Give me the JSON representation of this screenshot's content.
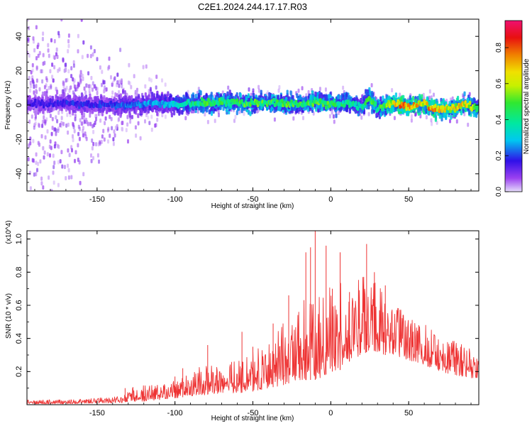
{
  "chart_data": [
    {
      "type": "heatmap",
      "title": "C2E1.2024.244.17.17.R03",
      "xlabel": "Height of straight line (km)",
      "ylabel": "Frequency (Hz)",
      "xlim": [
        -195,
        95
      ],
      "ylim": [
        -50,
        50
      ],
      "xticks": [
        -150,
        -100,
        -50,
        0,
        50
      ],
      "yticks": [
        -40,
        -20,
        0,
        20,
        40
      ],
      "colorbar": {
        "label": "Normalized spectral amplitude",
        "range": [
          0,
          0.95
        ],
        "ticks": [
          0,
          0.2,
          0.4,
          0.6,
          0.8
        ]
      },
      "trace": {
        "x": [
          -195,
          -170,
          -150,
          -130,
          -110,
          -100,
          -90,
          -80,
          -70,
          -60,
          -50,
          -40,
          -30,
          -20,
          -10,
          0,
          10,
          20,
          25,
          30,
          40,
          45,
          50,
          55,
          60,
          65,
          70,
          75,
          80,
          85,
          90,
          95
        ],
        "freq": [
          1,
          1,
          0,
          0,
          1,
          0,
          1,
          1,
          2,
          1,
          1,
          2,
          1,
          0,
          2,
          1,
          1,
          -1,
          4,
          -2,
          1,
          0,
          -1,
          0,
          1,
          -2,
          -3,
          -2,
          -2,
          1,
          -1,
          -2
        ],
        "amplitude": [
          0.15,
          0.2,
          0.2,
          0.25,
          0.3,
          0.35,
          0.45,
          0.5,
          0.5,
          0.5,
          0.55,
          0.5,
          0.55,
          0.5,
          0.55,
          0.5,
          0.45,
          0.4,
          0.55,
          0.45,
          0.7,
          0.85,
          0.8,
          0.75,
          0.7,
          0.8,
          0.75,
          0.7,
          0.7,
          0.75,
          0.6,
          0.5
        ]
      }
    },
    {
      "type": "line",
      "xlabel": "Height of straight line (km)",
      "ylabel": "SNR (10 * v/v)",
      "y_multiplier": "(x10^4)",
      "xlim": [
        -195,
        95
      ],
      "ylim": [
        0,
        1.05
      ],
      "xticks": [
        -150,
        -100,
        -50,
        0,
        50
      ],
      "yticks": [
        0.2,
        0.4,
        0.6,
        0.8,
        1.0
      ],
      "color": "#ee3333",
      "envelope": {
        "x": [
          -195,
          -170,
          -150,
          -135,
          -130,
          -120,
          -110,
          -100,
          -90,
          -80,
          -70,
          -60,
          -50,
          -40,
          -30,
          -20,
          -15,
          -10,
          -5,
          0,
          5,
          10,
          15,
          20,
          25,
          30,
          35,
          40,
          50,
          60,
          70,
          80,
          90,
          95
        ],
        "low": [
          0.005,
          0.005,
          0.01,
          0.01,
          0.02,
          0.02,
          0.03,
          0.04,
          0.05,
          0.06,
          0.07,
          0.07,
          0.08,
          0.1,
          0.12,
          0.15,
          0.15,
          0.15,
          0.17,
          0.2,
          0.2,
          0.25,
          0.28,
          0.3,
          0.33,
          0.32,
          0.3,
          0.3,
          0.27,
          0.24,
          0.2,
          0.18,
          0.16,
          0.16
        ],
        "high": [
          0.03,
          0.03,
          0.04,
          0.05,
          0.1,
          0.12,
          0.12,
          0.15,
          0.2,
          0.25,
          0.25,
          0.28,
          0.32,
          0.38,
          0.5,
          0.62,
          0.72,
          0.75,
          0.7,
          0.72,
          0.78,
          0.72,
          0.75,
          0.8,
          0.85,
          0.75,
          0.62,
          0.6,
          0.55,
          0.5,
          0.42,
          0.38,
          0.34,
          0.34
        ]
      },
      "spikes": [
        {
          "x": -132,
          "y": 0.1
        },
        {
          "x": -100,
          "y": 0.17
        },
        {
          "x": -95,
          "y": 0.22
        },
        {
          "x": -79,
          "y": 0.36
        },
        {
          "x": -57,
          "y": 0.44
        },
        {
          "x": -50,
          "y": 0.35
        },
        {
          "x": -37,
          "y": 0.49
        },
        {
          "x": -27,
          "y": 0.66
        },
        {
          "x": -16,
          "y": 0.92
        },
        {
          "x": -13,
          "y": 0.95
        },
        {
          "x": -10,
          "y": 1.05
        },
        {
          "x": -3,
          "y": 0.96
        },
        {
          "x": 1,
          "y": 0.7
        },
        {
          "x": 6,
          "y": 0.92
        },
        {
          "x": 12,
          "y": 0.68
        },
        {
          "x": 23,
          "y": 0.97
        },
        {
          "x": 28,
          "y": 0.8
        },
        {
          "x": 35,
          "y": 0.72
        }
      ]
    }
  ]
}
